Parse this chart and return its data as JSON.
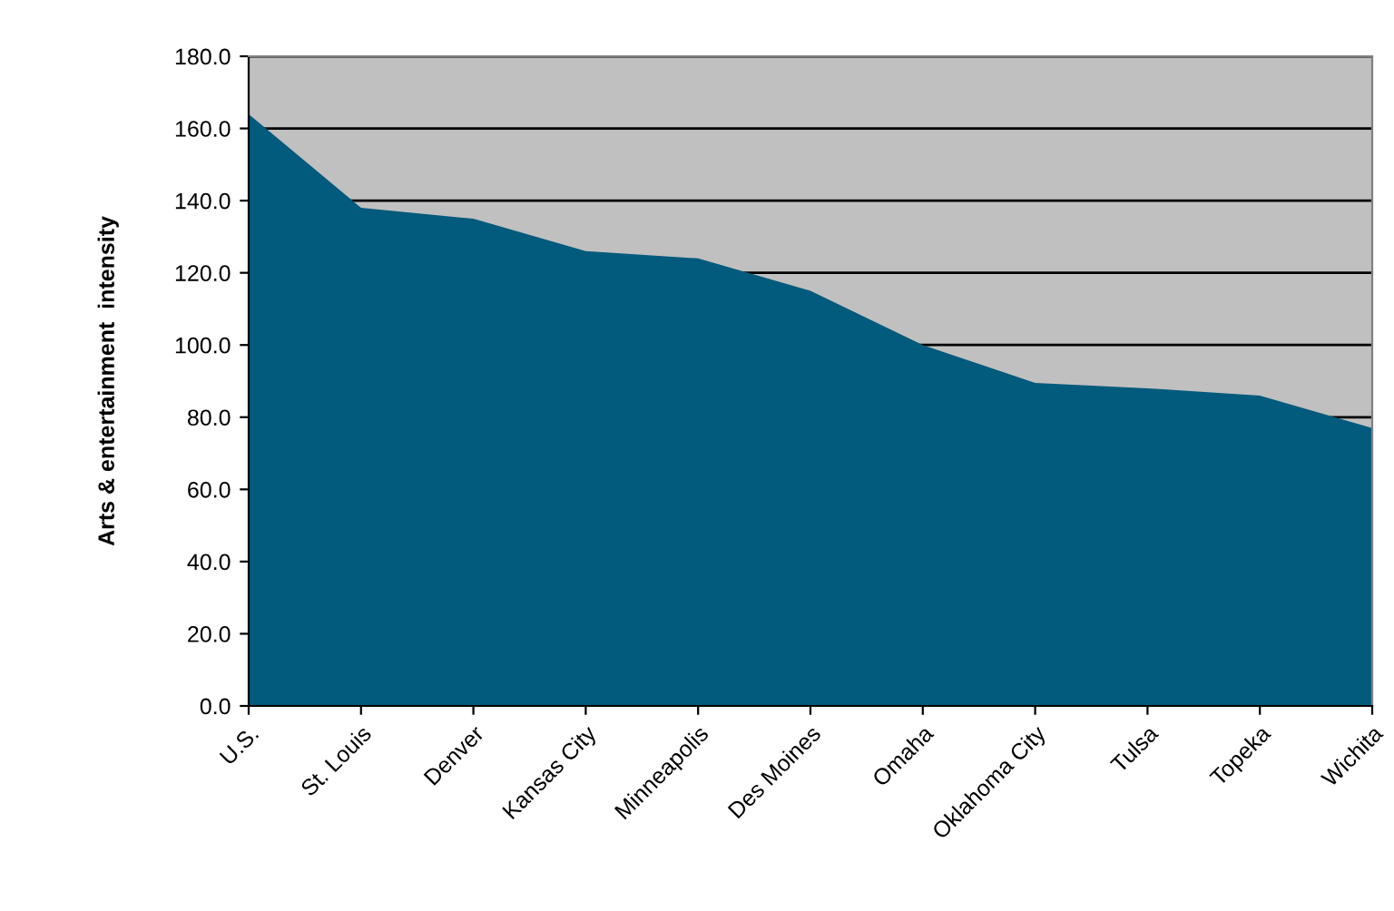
{
  "chart_data": {
    "type": "area",
    "ylabel": "Arts & entertainment  intensity",
    "categories": [
      "U.S.",
      "St. Louis",
      "Denver",
      "Kansas City",
      "Minneapolis",
      "Des Moines",
      "Omaha",
      "Oklahoma City",
      "Tulsa",
      "Topeka",
      "Wichita"
    ],
    "series": [
      {
        "color": "#025a7c",
        "values": [
          164,
          138,
          135,
          126,
          124,
          115,
          100,
          89.5,
          88,
          86,
          77
        ]
      }
    ],
    "ylim": [
      0,
      180
    ],
    "yticks": [
      {
        "value": 0,
        "label": "0.0"
      },
      {
        "value": 20,
        "label": "20.0"
      },
      {
        "value": 40,
        "label": "40.0"
      },
      {
        "value": 60,
        "label": "60.0"
      },
      {
        "value": 80,
        "label": "80.0"
      },
      {
        "value": 100,
        "label": "100.0"
      },
      {
        "value": 120,
        "label": "120.0"
      },
      {
        "value": 140,
        "label": "140.0"
      },
      {
        "value": 160,
        "label": "160.0"
      },
      {
        "value": 180,
        "label": "180.0"
      }
    ],
    "grid": "y"
  }
}
